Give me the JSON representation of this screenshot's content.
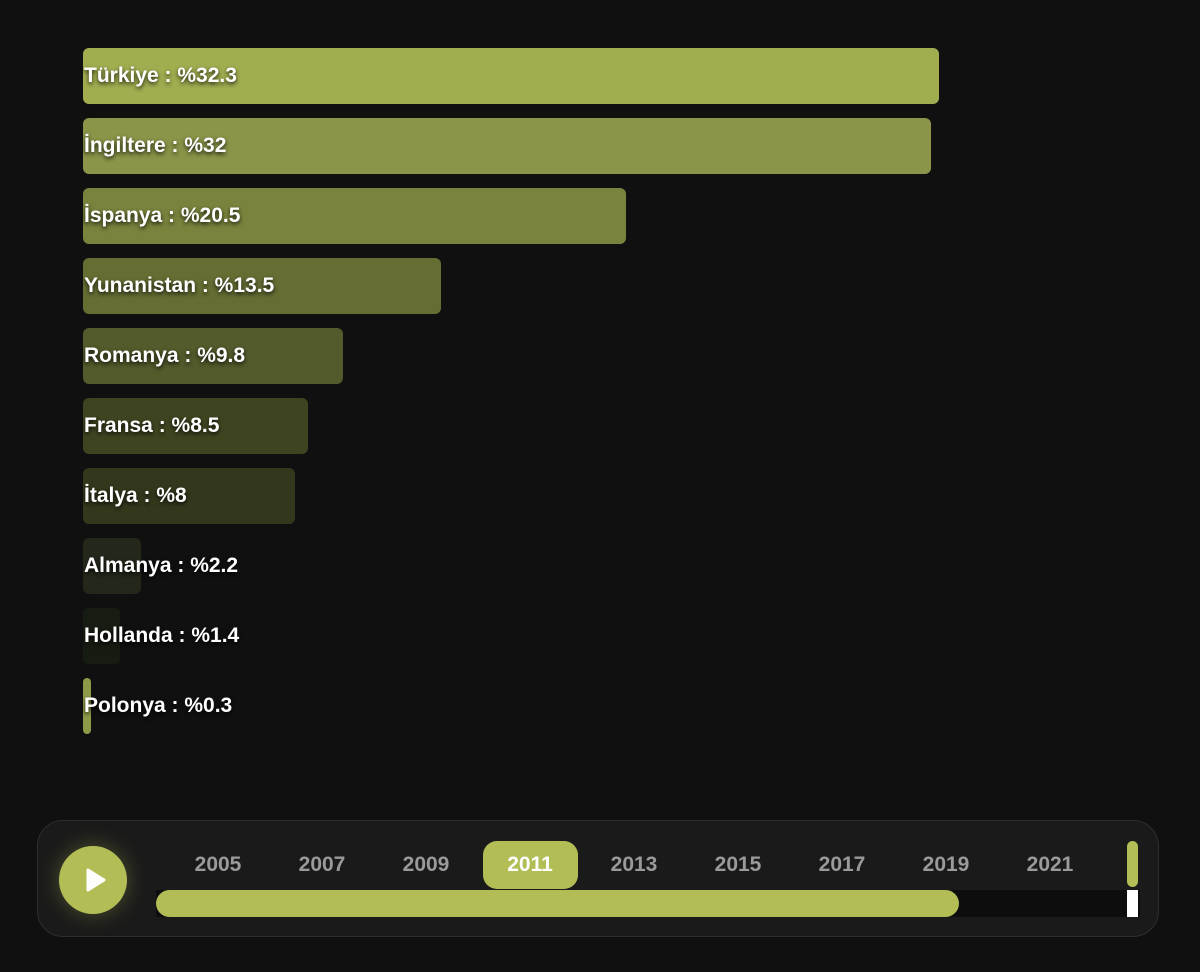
{
  "chart_data": {
    "type": "bar",
    "orientation": "horizontal",
    "categories": [
      "Türkiye",
      "İngiltere",
      "İspanya",
      "Yunanistan",
      "Romanya",
      "Fransa",
      "İtalya",
      "Almanya",
      "Hollanda",
      "Polonya"
    ],
    "values": [
      32.3,
      32,
      20.5,
      13.5,
      9.8,
      8.5,
      8,
      2.2,
      1.4,
      0.3
    ],
    "labels": [
      "Türkiye : %32.3",
      "İngiltere : %32",
      "İspanya : %20.5",
      "Yunanistan : %13.5",
      "Romanya : %9.8",
      "Fransa : %8.5",
      "İtalya : %8",
      "Almanya : %2.2",
      "Hollanda : %1.4",
      "Polonya : %0.3"
    ],
    "colors": [
      "#a2ad50",
      "#8b9448",
      "#7a833d",
      "#656d33",
      "#535a2b",
      "#3f4420",
      "#33381c",
      "#23281b",
      "#171c12",
      "#8e9a47"
    ],
    "xlim": [
      0,
      32.3
    ],
    "grid": false
  },
  "timeline": {
    "years": [
      "2005",
      "2007",
      "2009",
      "2011",
      "2013",
      "2015",
      "2017",
      "2019",
      "2021"
    ],
    "active_year": "2011",
    "progress": 0.816,
    "accent": "#b2bd56",
    "play_icon": "play-icon"
  }
}
